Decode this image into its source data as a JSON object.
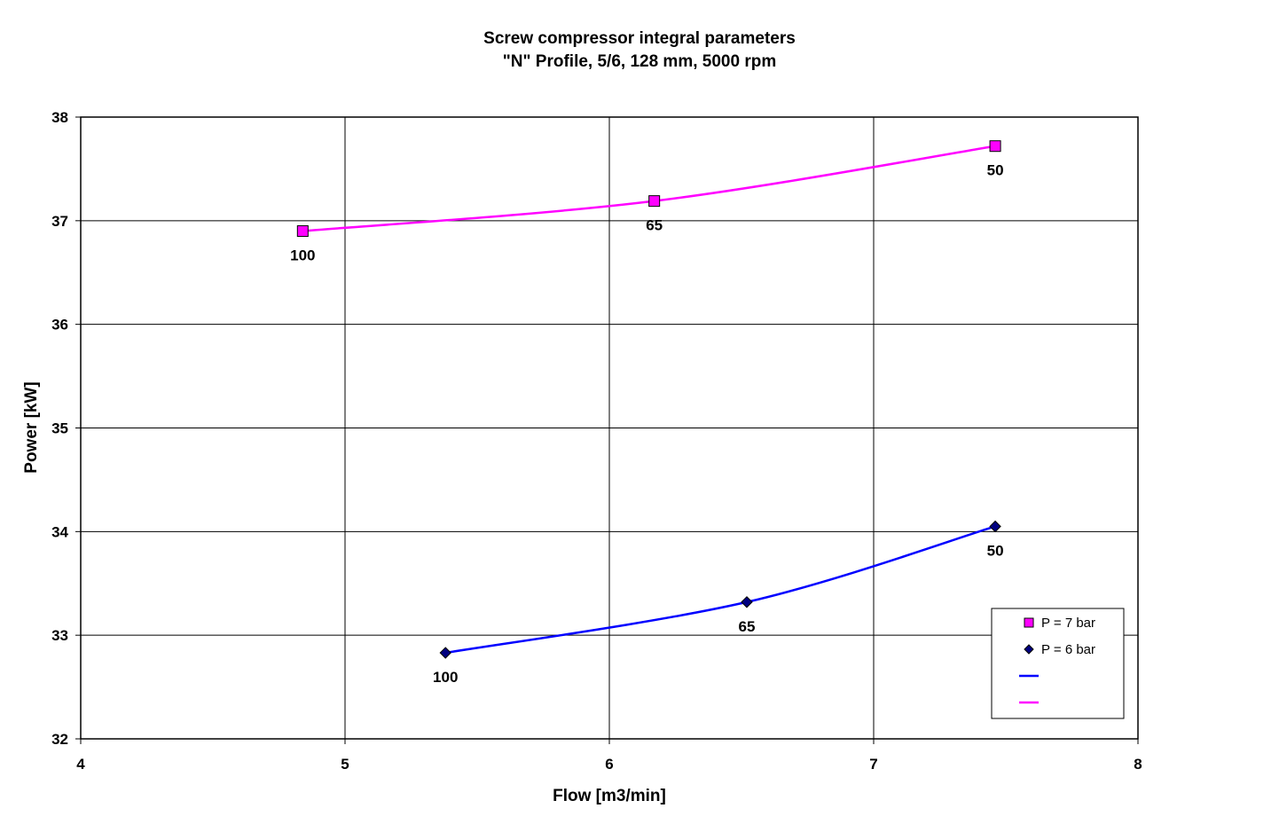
{
  "chart_data": {
    "type": "line",
    "title": "Screw compressor integral parameters",
    "subtitle": "\"N\" Profile, 5/6, 128 mm, 5000 rpm",
    "xlabel": "Flow [m3/min]",
    "ylabel": "Power [kW]",
    "xlim": [
      4,
      8
    ],
    "ylim": [
      32,
      38
    ],
    "xticks": [
      "4",
      "5",
      "6",
      "7",
      "8"
    ],
    "yticks": [
      "32",
      "33",
      "34",
      "35",
      "36",
      "37",
      "38"
    ],
    "grid": true,
    "legend_position": "bottom-right",
    "series": [
      {
        "name": "P = 7 bar",
        "marker": "square",
        "marker_color": "#ff00ff",
        "line_color": "#ff00ff",
        "points": [
          {
            "x": 4.84,
            "y": 36.9,
            "label": "100"
          },
          {
            "x": 6.17,
            "y": 37.19,
            "label": "65"
          },
          {
            "x": 7.46,
            "y": 37.72,
            "label": "50"
          }
        ]
      },
      {
        "name": "P = 6 bar",
        "marker": "diamond",
        "marker_color": "#000080",
        "line_color": "#0000ff",
        "points": [
          {
            "x": 5.38,
            "y": 32.83,
            "label": "100"
          },
          {
            "x": 6.52,
            "y": 33.32,
            "label": "65"
          },
          {
            "x": 7.46,
            "y": 34.05,
            "label": "50"
          }
        ]
      }
    ],
    "legend": [
      {
        "kind": "marker",
        "shape": "square",
        "color": "#ff00ff",
        "text": "P = 7 bar"
      },
      {
        "kind": "marker",
        "shape": "diamond",
        "color": "#000080",
        "text": "P = 6 bar"
      },
      {
        "kind": "line",
        "color": "#0000ff",
        "text": ""
      },
      {
        "kind": "line",
        "color": "#ff00ff",
        "text": ""
      }
    ]
  }
}
